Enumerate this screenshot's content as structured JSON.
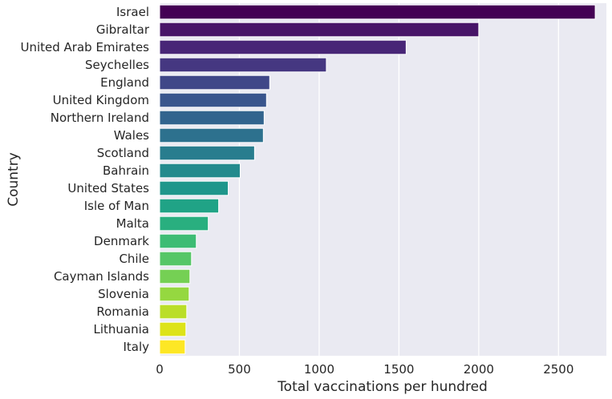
{
  "chart_data": {
    "type": "bar",
    "orientation": "horizontal",
    "title": "",
    "xlabel": "Total vaccinations per hundred",
    "ylabel": "Country",
    "xlim": [
      0,
      2800
    ],
    "xticks": [
      0,
      500,
      1000,
      1500,
      2000,
      2500
    ],
    "grid": true,
    "categories": [
      "Israel",
      "Gibraltar",
      "United Arab Emirates",
      "Seychelles",
      "England",
      "United Kingdom",
      "Northern Ireland",
      "Wales",
      "Scotland",
      "Bahrain",
      "United States",
      "Isle of Man",
      "Malta",
      "Denmark",
      "Chile",
      "Cayman Islands",
      "Slovenia",
      "Romania",
      "Lithuania",
      "Italy"
    ],
    "values": [
      2730,
      2000,
      1545,
      1045,
      690,
      670,
      655,
      650,
      595,
      505,
      430,
      370,
      305,
      230,
      200,
      190,
      185,
      170,
      165,
      160
    ],
    "colors": [
      "#440154",
      "#481568",
      "#482677",
      "#453781",
      "#3f4788",
      "#39558c",
      "#32648e",
      "#2d718e",
      "#287d8e",
      "#238a8d",
      "#1f968b",
      "#20a386",
      "#29af7f",
      "#3dbc74",
      "#56c667",
      "#75d054",
      "#95d840",
      "#bade28",
      "#dde318",
      "#fde725"
    ],
    "background": "#eaeaf2",
    "gridline_color": "#ffffff"
  }
}
